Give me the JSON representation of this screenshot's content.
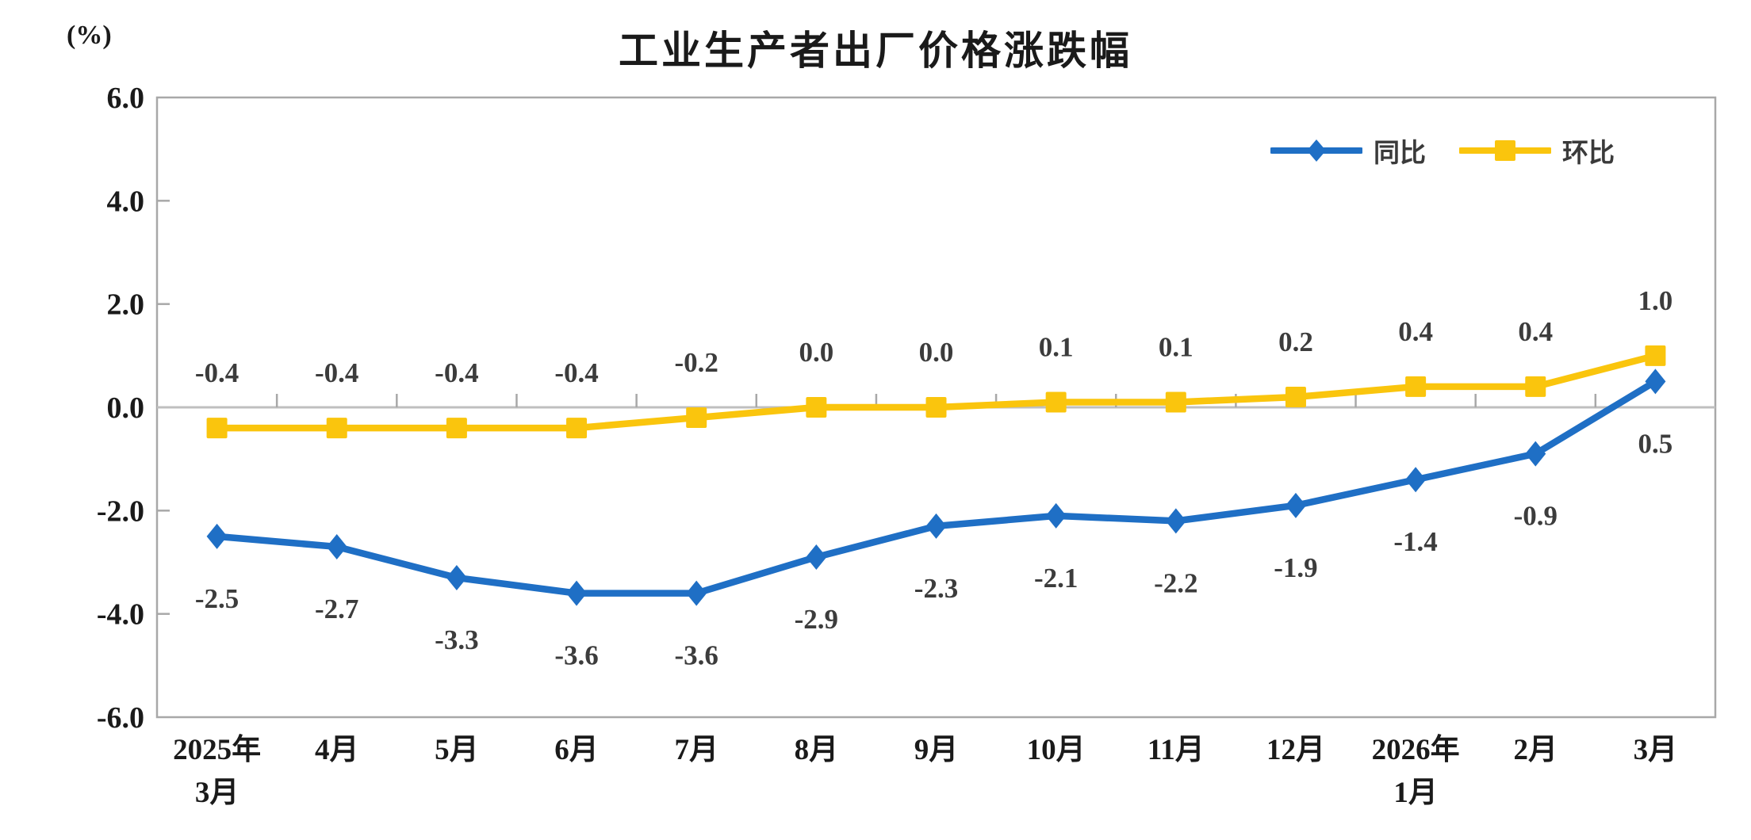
{
  "chart_data": {
    "type": "line",
    "title": "工业生产者出厂价格涨跌幅",
    "unit_label": "(%)",
    "categories": [
      "2025年\n3月",
      "4月",
      "5月",
      "6月",
      "7月",
      "8月",
      "9月",
      "10月",
      "11月",
      "12月",
      "2026年\n1月",
      "2月",
      "3月"
    ],
    "series": [
      {
        "id": "yoy",
        "name": "同比",
        "color": "#1F6FC5",
        "marker": "diamond",
        "label_position": "below",
        "values": [
          -2.5,
          -2.7,
          -3.3,
          -3.6,
          -3.6,
          -2.9,
          -2.3,
          -2.1,
          -2.2,
          -1.9,
          -1.4,
          -0.9,
          0.5
        ],
        "labels": [
          "-2.5",
          "-2.7",
          "-3.3",
          "-3.6",
          "-3.6",
          "-2.9",
          "-2.3",
          "-2.1",
          "-2.2",
          "-1.9",
          "-1.4",
          "-0.9",
          "0.5"
        ]
      },
      {
        "id": "mom",
        "name": "环比",
        "color": "#FAC50D",
        "marker": "square",
        "label_position": "above",
        "values": [
          -0.4,
          -0.4,
          -0.4,
          -0.4,
          -0.2,
          0.0,
          0.0,
          0.1,
          0.1,
          0.2,
          0.4,
          0.4,
          1.0
        ],
        "labels": [
          "-0.4",
          "-0.4",
          "-0.4",
          "-0.4",
          "-0.2",
          "0.0",
          "0.0",
          "0.1",
          "0.1",
          "0.2",
          "0.4",
          "0.4",
          "1.0"
        ]
      }
    ],
    "y_axis": {
      "min": -6.0,
      "max": 6.0,
      "step": 2.0,
      "tick_labels": [
        "6.0",
        "4.0",
        "2.0",
        "0.0",
        "-2.0",
        "-4.0",
        "-6.0"
      ]
    },
    "legend_position": "top-right",
    "grid": "zero-line-only",
    "colors": {
      "border": "#A8A8A8",
      "zero_line": "#BFBFBF",
      "tick": "#A8A8A8",
      "axis_text": "#1a1a1a",
      "data_label_text": "#3C3C3C"
    }
  }
}
